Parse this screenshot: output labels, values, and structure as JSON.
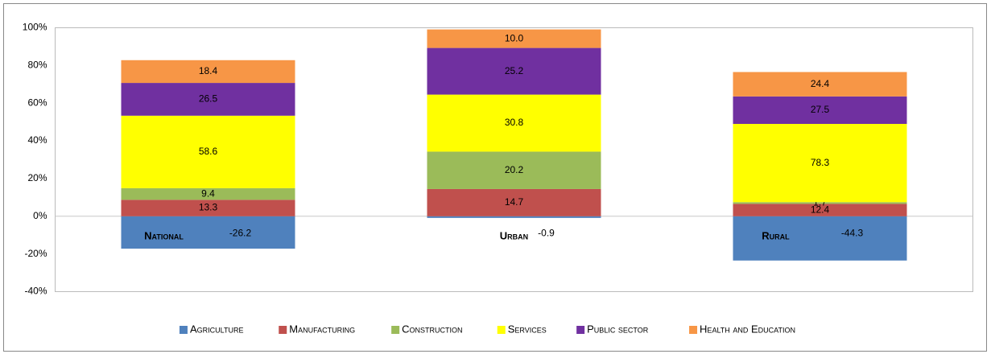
{
  "chart_data": {
    "type": "bar",
    "stack": "percent",
    "categories": [
      "National",
      "Urban",
      "Rural"
    ],
    "series": [
      {
        "name": "Agriculture",
        "color": "#4f81bd",
        "values": [
          -26.2,
          -0.9,
          -44.3
        ]
      },
      {
        "name": "Manufacturing",
        "color": "#c0504d",
        "values": [
          13.3,
          14.7,
          12.4
        ]
      },
      {
        "name": "Construction",
        "color": "#9bbb59",
        "values": [
          9.4,
          20.2,
          1.7
        ]
      },
      {
        "name": "Services",
        "color": "#ffff00",
        "values": [
          58.6,
          30.8,
          78.3
        ]
      },
      {
        "name": "Public sector",
        "color": "#7030a0",
        "values": [
          26.5,
          25.2,
          27.5
        ]
      },
      {
        "name": "Health and Education",
        "color": "#f79646",
        "values": [
          18.4,
          10.0,
          24.4
        ]
      }
    ],
    "value_labels": [
      [
        "-26.2",
        "-0.9",
        "-44.3"
      ],
      [
        "13.3",
        "14.7",
        "12.4"
      ],
      [
        "9.4",
        "20.2",
        "1.7"
      ],
      [
        "58.6",
        "30.8",
        "78.3"
      ],
      [
        "26.5",
        "25.2",
        "27.5"
      ],
      [
        "18.4",
        "10.0",
        "24.4"
      ]
    ],
    "ylim": [
      -40,
      100
    ],
    "yticks": [
      {
        "value": -40,
        "label": "-40%"
      },
      {
        "value": -20,
        "label": "-20%"
      },
      {
        "value": 0,
        "label": "0%"
      },
      {
        "value": 20,
        "label": "20%"
      },
      {
        "value": 40,
        "label": "40%"
      },
      {
        "value": 60,
        "label": "60%"
      },
      {
        "value": 80,
        "label": "80%"
      },
      {
        "value": 100,
        "label": "100%"
      }
    ],
    "grid": false,
    "legend": "bottom"
  }
}
